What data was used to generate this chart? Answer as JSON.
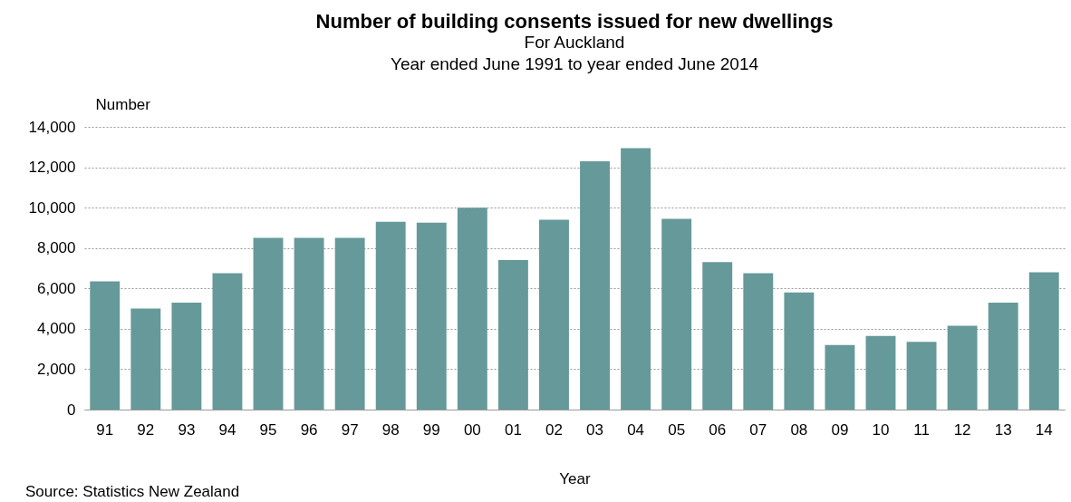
{
  "chart_data": {
    "type": "bar",
    "title": "Number of building  consents issued for new dwellings",
    "subtitle": "For Auckland\nYear ended June 1991 to year ended June 2014",
    "xlabel": "Year",
    "ylabel": "Number",
    "categories": [
      "91",
      "92",
      "93",
      "94",
      "95",
      "96",
      "97",
      "98",
      "99",
      "00",
      "01",
      "02",
      "03",
      "04",
      "05",
      "06",
      "07",
      "08",
      "09",
      "10",
      "11",
      "12",
      "13",
      "14"
    ],
    "values": [
      6350,
      5000,
      5300,
      6750,
      8500,
      8500,
      8500,
      9300,
      9250,
      10000,
      7400,
      9400,
      12300,
      12950,
      9450,
      7300,
      6750,
      5800,
      3200,
      3650,
      3350,
      4150,
      5300,
      6800
    ],
    "color": "#669999",
    "ylim": [
      0,
      14000
    ],
    "yticks": [
      0,
      {
        "value": 2000,
        "label": "2,000"
      },
      {
        "value": 4000,
        "label": "4,000"
      },
      {
        "value": 6000,
        "label": "6,000"
      },
      {
        "value": 8000,
        "label": "8,000"
      },
      {
        "value": 10000,
        "label": "10,000"
      },
      {
        "value": 12000,
        "label": "12,000"
      },
      {
        "value": 14000,
        "label": "14,000"
      }
    ],
    "grid": "y",
    "annotations": [
      "Source: Statistics New Zealand"
    ]
  }
}
